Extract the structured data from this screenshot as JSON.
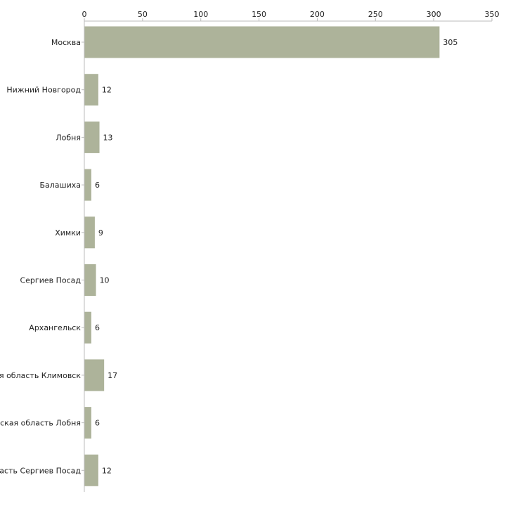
{
  "chart_data": {
    "type": "bar",
    "orientation": "horizontal",
    "title": "",
    "xlabel": "",
    "ylabel": "",
    "xlim": [
      0,
      350
    ],
    "ticks": [
      0,
      50,
      100,
      150,
      200,
      250,
      300,
      350
    ],
    "categories": [
      "Москва",
      "Нижний Новгород",
      "Лобня",
      "Балашиха",
      "Химки",
      "Сергиев Посад",
      "Архангельск",
      "Московская область Климовск",
      "Московская область Лобня",
      "Московская область Сергиев Посад"
    ],
    "values": [
      305,
      12,
      13,
      6,
      9,
      10,
      6,
      17,
      6,
      12
    ],
    "bar_color": "#adb39a",
    "axis_color": "#bbbbbb",
    "text_color": "#222222",
    "grid": false,
    "legend": "none"
  }
}
